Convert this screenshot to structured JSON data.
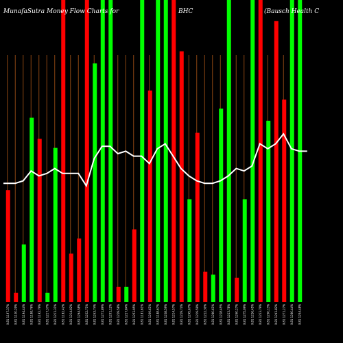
{
  "header": {
    "left": "MunafaSutra  Money Flow  Charts for",
    "middle": "BHC",
    "right": "(Bausch Health C"
  },
  "chart_data": {
    "type": "bar",
    "ylim": [
      0,
      1
    ],
    "colors": {
      "up": "#00ff00",
      "down": "#ff0000",
      "line": "#ffffff",
      "grid": "#8b4513"
    },
    "bars": [
      {
        "color": "down",
        "value": 0.37
      },
      {
        "color": "down",
        "value": 0.03
      },
      {
        "color": "up",
        "value": 0.19
      },
      {
        "color": "up",
        "value": 0.61
      },
      {
        "color": "down",
        "value": 0.54
      },
      {
        "color": "up",
        "value": 0.03
      },
      {
        "color": "up",
        "value": 0.51
      },
      {
        "color": "down",
        "value": 1.0
      },
      {
        "color": "down",
        "value": 0.16
      },
      {
        "color": "down",
        "value": 0.21
      },
      {
        "color": "down",
        "value": 1.0
      },
      {
        "color": "up",
        "value": 0.79
      },
      {
        "color": "up",
        "value": 1.0
      },
      {
        "color": "up",
        "value": 1.0
      },
      {
        "color": "down",
        "value": 0.05
      },
      {
        "color": "up",
        "value": 0.05
      },
      {
        "color": "down",
        "value": 0.24
      },
      {
        "color": "up",
        "value": 1.0
      },
      {
        "color": "down",
        "value": 0.7
      },
      {
        "color": "up",
        "value": 1.0
      },
      {
        "color": "up",
        "value": 1.0
      },
      {
        "color": "down",
        "value": 1.0
      },
      {
        "color": "down",
        "value": 0.83
      },
      {
        "color": "up",
        "value": 0.34
      },
      {
        "color": "down",
        "value": 0.56
      },
      {
        "color": "down",
        "value": 0.1
      },
      {
        "color": "up",
        "value": 0.09
      },
      {
        "color": "up",
        "value": 0.64
      },
      {
        "color": "up",
        "value": 1.0
      },
      {
        "color": "down",
        "value": 0.08
      },
      {
        "color": "up",
        "value": 0.34
      },
      {
        "color": "up",
        "value": 1.0
      },
      {
        "color": "down",
        "value": 1.0
      },
      {
        "color": "up",
        "value": 0.6
      },
      {
        "color": "down",
        "value": 0.93
      },
      {
        "color": "down",
        "value": 0.67
      },
      {
        "color": "up",
        "value": 1.0
      },
      {
        "color": "up",
        "value": 1.0
      }
    ],
    "line": [
      0.48,
      0.48,
      0.49,
      0.53,
      0.51,
      0.52,
      0.54,
      0.52,
      0.52,
      0.52,
      0.47,
      0.58,
      0.63,
      0.63,
      0.6,
      0.61,
      0.59,
      0.59,
      0.56,
      0.62,
      0.64,
      0.59,
      0.54,
      0.51,
      0.49,
      0.48,
      0.48,
      0.49,
      0.51,
      0.54,
      0.53,
      0.55,
      0.64,
      0.62,
      0.64,
      0.68,
      0.62,
      0.61,
      0.61
    ],
    "tick_labels": [
      "0.81 1197.37%",
      "0.81 1130.29%",
      "0.81 1194.44%",
      "0.81 1198.76%",
      "0.81 1192.79%",
      "0.81 1217.37%",
      "0.81 1211.31%",
      "0.81 1182.42%",
      "0.81 1214.02%",
      "0.81 1264.58%",
      "0.81 1232.71%",
      "0.81 1243.74%",
      "0.81 1271.89%",
      "0.81 1201.12%",
      "0.81 1229.58%",
      "0.81 1227.84%",
      "0.81 1253.95%",
      "0.81 1181.61%",
      "0.81 1209.61%",
      "0.81 1188.67%",
      "0.81 1238.59%",
      "0.81 1214.57%",
      "0.81 1229.74%",
      "0.81 1245.67%",
      "0.81 1219.59%",
      "0.81 1222.30%",
      "0.81 1260.61%",
      "0.81 1228.45%",
      "0.81 1223.78%",
      "0.81 1240.27%",
      "0.81 1275.09%",
      "0.81 1226.45%",
      "0.81 1233.79%",
      "0.81 1200.13%",
      "0.81 1241.82%",
      "0.81 1271.27%",
      "0.81 1260.44%",
      "0.81 1254.48%"
    ]
  }
}
